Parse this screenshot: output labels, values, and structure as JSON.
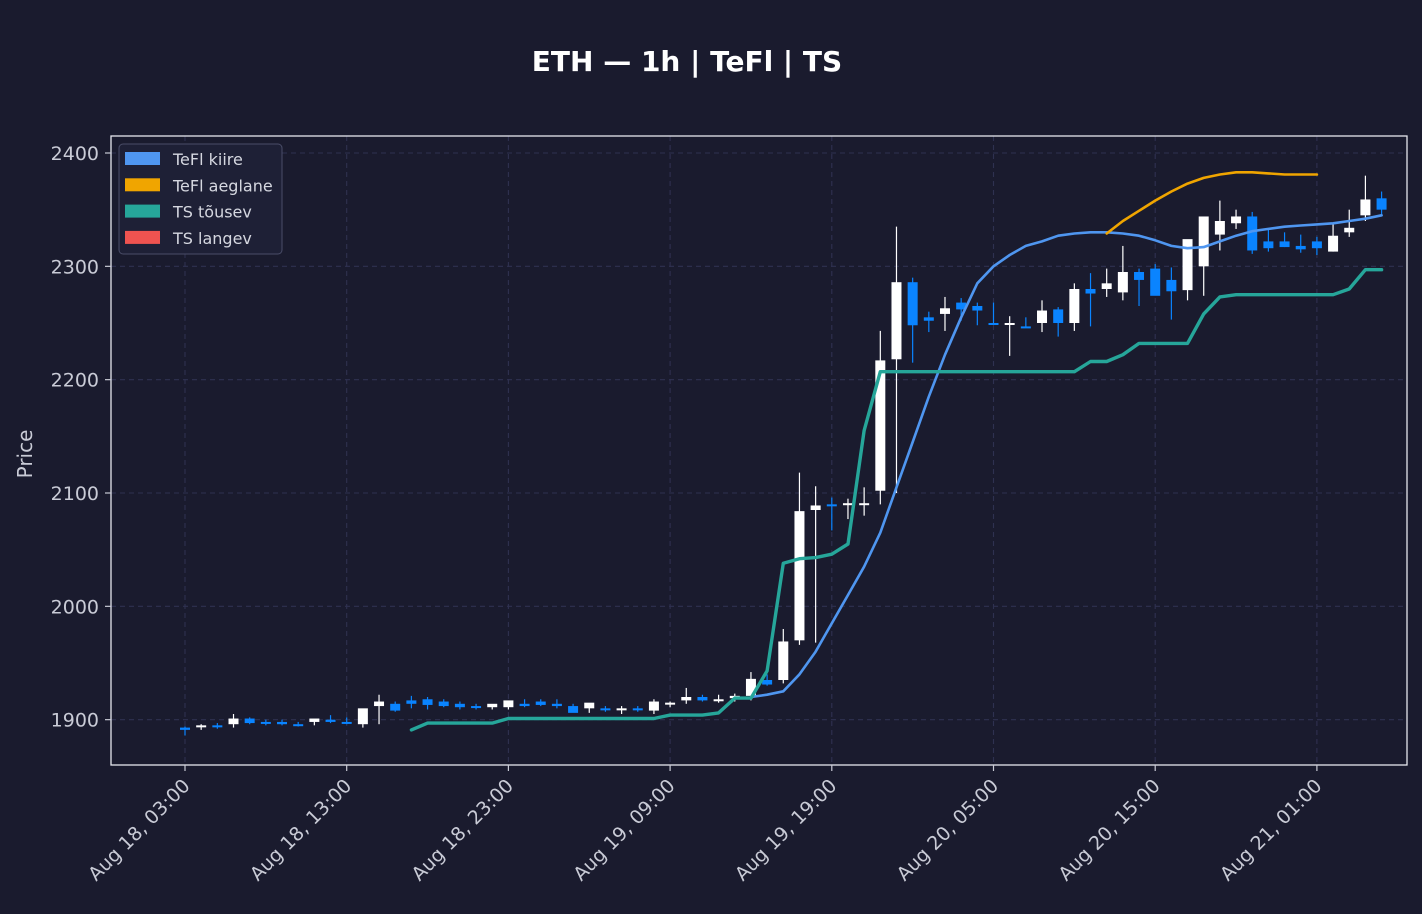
{
  "chart_data": {
    "type": "candlestick",
    "title": "ETH — 1h  |  TeFl  |  TS",
    "xlabel": "",
    "ylabel": "Price",
    "ylim": [
      1860,
      2415
    ],
    "yticks": [
      1900,
      2000,
      2100,
      2200,
      2300,
      2400
    ],
    "xticks": [
      "Aug 18, 03:00",
      "Aug 18, 13:00",
      "Aug 18, 23:00",
      "Aug 19, 09:00",
      "Aug 19, 19:00",
      "Aug 20, 05:00",
      "Aug 20, 15:00",
      "Aug 21, 01:00"
    ],
    "xtick_index": [
      0,
      10,
      20,
      30,
      40,
      50,
      60,
      70
    ],
    "grid": true,
    "legend_position": "top-left",
    "colors": {
      "background": "#1a1b2e",
      "up": "#ffffff",
      "down": "#0a84ff",
      "tefl_fast": "#4f96f0",
      "tefl_slow": "#f0a500",
      "ts_up": "#26a69a",
      "ts_down": "#ef5350",
      "grid": "#2f3150",
      "axis": "#c9cbd6"
    },
    "candles": {
      "o": [
        1893,
        1894,
        1895,
        1896,
        1901,
        1898,
        1898,
        1896,
        1898,
        1900,
        1898,
        1896,
        1912,
        1914,
        1917,
        1918,
        1916,
        1914,
        1912,
        1911,
        1911,
        1914,
        1916,
        1914,
        1912,
        1910,
        1910,
        1909,
        1910,
        1908,
        1914,
        1917,
        1920,
        1918,
        1919,
        1921,
        1935,
        1935,
        1970,
        2085,
        2090,
        2091,
        2090,
        2102,
        2218,
        2286,
        2255,
        2258,
        2268,
        2265,
        2250,
        2249,
        2247,
        2250,
        2262,
        2250,
        2280,
        2280,
        2277,
        2295,
        2298,
        2288,
        2279,
        2300,
        2328,
        2338,
        2344,
        2322,
        2322,
        2318,
        2322,
        2313,
        2330,
        2345,
        2360
      ],
      "h": [
        1894,
        1896,
        1897,
        1905,
        1902,
        1900,
        1900,
        1898,
        1900,
        1904,
        1902,
        1898,
        1922,
        1916,
        1921,
        1920,
        1918,
        1916,
        1914,
        1913,
        1913,
        1918,
        1918,
        1918,
        1914,
        1914,
        1912,
        1912,
        1912,
        1918,
        1916,
        1928,
        1922,
        1922,
        1923,
        1942,
        1940,
        1980,
        2118,
        2106,
        2096,
        2095,
        2105,
        2243,
        2335,
        2290,
        2260,
        2273,
        2272,
        2268,
        2268,
        2256,
        2255,
        2270,
        2264,
        2285,
        2294,
        2298,
        2318,
        2298,
        2302,
        2299,
        2288,
        2337,
        2358,
        2350,
        2348,
        2333,
        2330,
        2328,
        2326,
        2338,
        2350,
        2380,
        2366
      ],
      "l": [
        1886,
        1891,
        1892,
        1893,
        1896,
        1895,
        1895,
        1894,
        1895,
        1897,
        1896,
        1893,
        1896,
        1907,
        1910,
        1909,
        1911,
        1909,
        1909,
        1909,
        1909,
        1911,
        1912,
        1910,
        1907,
        1906,
        1907,
        1905,
        1907,
        1905,
        1911,
        1914,
        1916,
        1915,
        1916,
        1917,
        1930,
        1932,
        1966,
        1968,
        2067,
        2077,
        2080,
        2090,
        2100,
        2215,
        2242,
        2243,
        2252,
        2248,
        2250,
        2221,
        2246,
        2242,
        2238,
        2243,
        2247,
        2273,
        2270,
        2265,
        2282,
        2253,
        2270,
        2274,
        2314,
        2333,
        2311,
        2313,
        2317,
        2312,
        2310,
        2313,
        2326,
        2340,
        2345
      ],
      "c": [
        1891,
        1895,
        1894,
        1901,
        1897,
        1897,
        1896,
        1895,
        1901,
        1898,
        1897,
        1910,
        1916,
        1908,
        1914,
        1913,
        1912,
        1911,
        1911,
        1914,
        1917,
        1912,
        1913,
        1912,
        1906,
        1915,
        1909,
        1910,
        1909,
        1916,
        1915,
        1920,
        1917,
        1918,
        1921,
        1936,
        1931,
        1969,
        2084,
        2089,
        2089,
        2091,
        2091,
        2217,
        2286,
        2248,
        2252,
        2263,
        2262,
        2261,
        2249,
        2250,
        2246,
        2261,
        2250,
        2280,
        2276,
        2285,
        2295,
        2288,
        2274,
        2278,
        2324,
        2344,
        2340,
        2344,
        2314,
        2316,
        2317,
        2315,
        2316,
        2327,
        2334,
        2359,
        2350
      ]
    },
    "tefl_fast": [
      null,
      null,
      null,
      null,
      null,
      null,
      null,
      null,
      null,
      null,
      null,
      null,
      null,
      null,
      null,
      null,
      null,
      null,
      null,
      null,
      null,
      null,
      null,
      null,
      null,
      null,
      null,
      null,
      null,
      null,
      null,
      null,
      null,
      null,
      null,
      1920,
      1922,
      1925,
      1940,
      1960,
      1985,
      2010,
      2035,
      2065,
      2105,
      2145,
      2185,
      2222,
      2255,
      2285,
      2300,
      2310,
      2318,
      2322,
      2327,
      2329,
      2330,
      2330,
      2329,
      2327,
      2323,
      2318,
      2316,
      2317,
      2322,
      2327,
      2331,
      2333,
      2335,
      2336,
      2337,
      2338,
      2340,
      2342,
      2345
    ],
    "tefl_slow": [
      null,
      null,
      null,
      null,
      null,
      null,
      null,
      null,
      null,
      null,
      null,
      null,
      null,
      null,
      null,
      null,
      null,
      null,
      null,
      null,
      null,
      null,
      null,
      null,
      null,
      null,
      null,
      null,
      null,
      null,
      null,
      null,
      null,
      null,
      null,
      null,
      null,
      null,
      null,
      null,
      null,
      null,
      null,
      null,
      null,
      null,
      null,
      null,
      null,
      null,
      null,
      null,
      null,
      null,
      null,
      null,
      null,
      2329,
      2340,
      2349,
      2358,
      2366,
      2373,
      2378,
      2381,
      2383,
      2383,
      2382,
      2381,
      2381,
      2381,
      null,
      null,
      null,
      null
    ],
    "ts_up": [
      null,
      null,
      null,
      null,
      null,
      null,
      null,
      null,
      null,
      null,
      null,
      null,
      null,
      null,
      1891,
      1897,
      1897,
      1897,
      1897,
      1897,
      1901,
      1901,
      1901,
      1901,
      1901,
      1901,
      1901,
      1901,
      1901,
      1901,
      1904,
      1904,
      1904,
      1906,
      1919,
      1919,
      1943,
      2038,
      2042,
      2043,
      2046,
      2055,
      2155,
      2207,
      2207,
      2207,
      2207,
      2207,
      2207,
      2207,
      2207,
      2207,
      2207,
      2207,
      2207,
      2207,
      2216,
      2216,
      2222,
      2232,
      2232,
      2232,
      2232,
      2258,
      2273,
      2275,
      2275,
      2275,
      2275,
      2275,
      2275,
      2275,
      2280,
      2297,
      2297
    ],
    "ts_up_offset": 14,
    "legend": [
      {
        "label": "TeFl kiire",
        "color": "#4f96f0"
      },
      {
        "label": "TeFl aeglane",
        "color": "#f0a500"
      },
      {
        "label": "TS tõusev",
        "color": "#26a69a"
      },
      {
        "label": "TS langev",
        "color": "#ef5350"
      }
    ]
  }
}
